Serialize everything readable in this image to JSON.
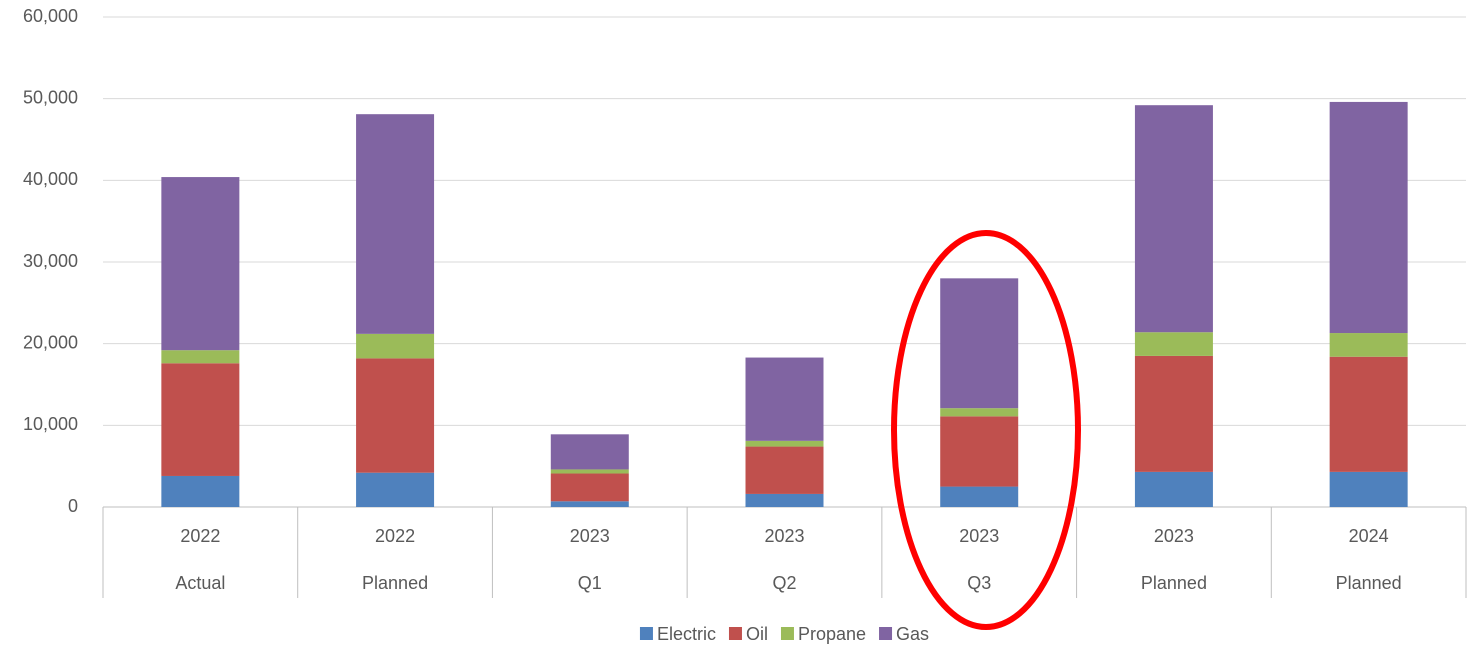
{
  "chart_data": {
    "type": "stacked_bar",
    "categories": [
      "2022",
      "2022",
      "2023",
      "2023",
      "2023",
      "2023",
      "2024"
    ],
    "subcategories": [
      "Actual",
      "Planned",
      "Q1",
      "Q2",
      "Q3",
      "Planned",
      "Planned"
    ],
    "series": [
      {
        "name": "Electric",
        "color": "#4f81bd",
        "values": [
          3800,
          4200,
          700,
          1600,
          2500,
          4300,
          4300
        ]
      },
      {
        "name": "Oil",
        "color": "#c0504d",
        "values": [
          13800,
          14000,
          3400,
          5800,
          8600,
          14200,
          14100
        ]
      },
      {
        "name": "Propane",
        "color": "#9bbb59",
        "values": [
          1600,
          3000,
          500,
          700,
          1000,
          2900,
          2900
        ]
      },
      {
        "name": "Gas",
        "color": "#8064a2",
        "values": [
          21200,
          26900,
          4300,
          10200,
          15900,
          27800,
          28300
        ]
      }
    ],
    "ylim": [
      0,
      60000
    ],
    "yticks": [
      0,
      {
        "value": 10000,
        "label": "10,000"
      },
      {
        "value": 20000,
        "label": "20,000"
      },
      {
        "value": 30000,
        "label": "30,000"
      },
      {
        "value": 40000,
        "label": "40,000"
      },
      {
        "value": 50000,
        "label": "50,000"
      },
      {
        "value": 60000,
        "label": "60,000"
      }
    ],
    "grid": true,
    "legend": "bottom"
  }
}
